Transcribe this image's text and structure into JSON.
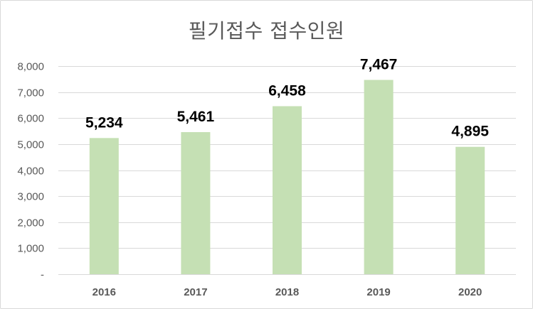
{
  "chart_data": {
    "type": "bar",
    "title": "필기접수 접수인원",
    "categories": [
      "2016",
      "2017",
      "2018",
      "2019",
      "2020"
    ],
    "values": [
      5234,
      5461,
      6458,
      7467,
      4895
    ],
    "data_labels": [
      "5,234",
      "5,461",
      "6,458",
      "7,467",
      "4,895"
    ],
    "ylim": [
      0,
      8000
    ],
    "yticks": [
      0,
      1000,
      2000,
      3000,
      4000,
      5000,
      6000,
      7000,
      8000
    ],
    "ytick_labels": [
      "-",
      "1,000",
      "2,000",
      "3,000",
      "4,000",
      "5,000",
      "6,000",
      "7,000",
      "8,000"
    ],
    "grid": true,
    "legend": "none",
    "bar_color": "#c5e0b4",
    "grid_color": "#d9d9d9"
  }
}
